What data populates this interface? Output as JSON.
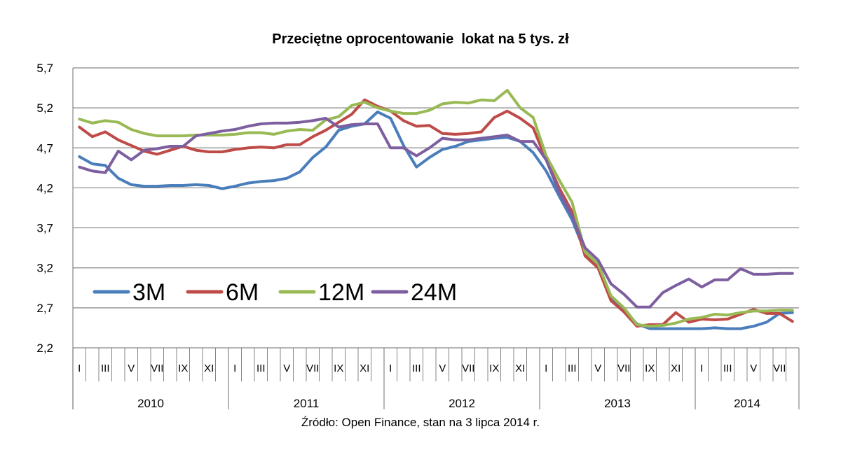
{
  "chart_data": {
    "type": "line",
    "title": "Przeciętne oprocentowanie  lokat na 5 tys. zł",
    "source": "Źródło: Open Finance, stan na 3 lipca 2014 r.",
    "xlabel": "",
    "ylabel": "",
    "ylim": [
      2.2,
      5.7
    ],
    "yticks": [
      "5,7",
      "5,2",
      "4,7",
      "4,2",
      "3,7",
      "3,2",
      "2,7",
      "2,2"
    ],
    "grid": true,
    "legend_position": "inside-lower-left",
    "month_tick_labels": [
      "I",
      "III",
      "V",
      "VII",
      "IX",
      "XI"
    ],
    "month_tick_labels_last_year": [
      "I",
      "III",
      "V",
      "VII"
    ],
    "years": [
      "2010",
      "2011",
      "2012",
      "2013",
      "2014"
    ],
    "x_start": "2010-01",
    "x_end": "2014-07",
    "series": [
      {
        "name": "3M",
        "color": "#4a7ebb",
        "values": [
          4.59,
          4.5,
          4.48,
          4.32,
          4.24,
          4.22,
          4.22,
          4.23,
          4.23,
          4.24,
          4.23,
          4.19,
          4.22,
          4.26,
          4.28,
          4.29,
          4.32,
          4.4,
          4.58,
          4.71,
          4.92,
          4.97,
          5.0,
          5.15,
          5.07,
          4.73,
          4.46,
          4.58,
          4.68,
          4.72,
          4.78,
          4.8,
          4.82,
          4.83,
          4.78,
          4.64,
          4.41,
          4.1,
          3.8,
          3.4,
          3.2,
          2.83,
          2.67,
          2.5,
          2.44,
          2.44,
          2.44,
          2.44,
          2.44,
          2.45,
          2.44,
          2.44,
          2.47,
          2.52,
          2.63,
          2.64
        ]
      },
      {
        "name": "6M",
        "color": "#be4b48",
        "values": [
          4.96,
          4.84,
          4.9,
          4.8,
          4.73,
          4.66,
          4.62,
          4.67,
          4.72,
          4.67,
          4.65,
          4.65,
          4.68,
          4.7,
          4.71,
          4.7,
          4.74,
          4.74,
          4.84,
          4.92,
          5.02,
          5.12,
          5.3,
          5.22,
          5.16,
          5.04,
          4.97,
          4.98,
          4.88,
          4.87,
          4.88,
          4.9,
          5.08,
          5.16,
          5.07,
          4.95,
          4.55,
          4.2,
          3.9,
          3.35,
          3.2,
          2.79,
          2.65,
          2.47,
          2.49,
          2.49,
          2.64,
          2.52,
          2.56,
          2.55,
          2.56,
          2.62,
          2.68,
          2.63,
          2.63,
          2.53
        ]
      },
      {
        "name": "12M",
        "color": "#98b954",
        "values": [
          5.06,
          5.01,
          5.04,
          5.02,
          4.93,
          4.88,
          4.85,
          4.85,
          4.85,
          4.86,
          4.86,
          4.86,
          4.87,
          4.89,
          4.89,
          4.87,
          4.91,
          4.93,
          4.92,
          5.05,
          5.09,
          5.23,
          5.27,
          5.2,
          5.16,
          5.13,
          5.13,
          5.17,
          5.25,
          5.27,
          5.26,
          5.3,
          5.29,
          5.42,
          5.2,
          5.08,
          4.6,
          4.3,
          4.02,
          3.4,
          3.25,
          2.85,
          2.7,
          2.49,
          2.47,
          2.48,
          2.51,
          2.56,
          2.58,
          2.62,
          2.61,
          2.64,
          2.66,
          2.66,
          2.67,
          2.67
        ]
      },
      {
        "name": "24M",
        "color": "#7d5fa0",
        "values": [
          4.46,
          4.41,
          4.39,
          4.66,
          4.55,
          4.67,
          4.69,
          4.72,
          4.72,
          4.85,
          4.88,
          4.91,
          4.93,
          4.97,
          5.0,
          5.01,
          5.01,
          5.02,
          5.04,
          5.07,
          4.96,
          4.99,
          5.0,
          5.0,
          4.7,
          4.7,
          4.6,
          4.7,
          4.82,
          4.8,
          4.8,
          4.82,
          4.84,
          4.86,
          4.78,
          4.78,
          4.55,
          4.15,
          3.85,
          3.45,
          3.3,
          3.0,
          2.87,
          2.71,
          2.71,
          2.89,
          2.98,
          3.06,
          2.96,
          3.05,
          3.05,
          3.19,
          3.12,
          3.12,
          3.13,
          3.13
        ]
      }
    ]
  }
}
